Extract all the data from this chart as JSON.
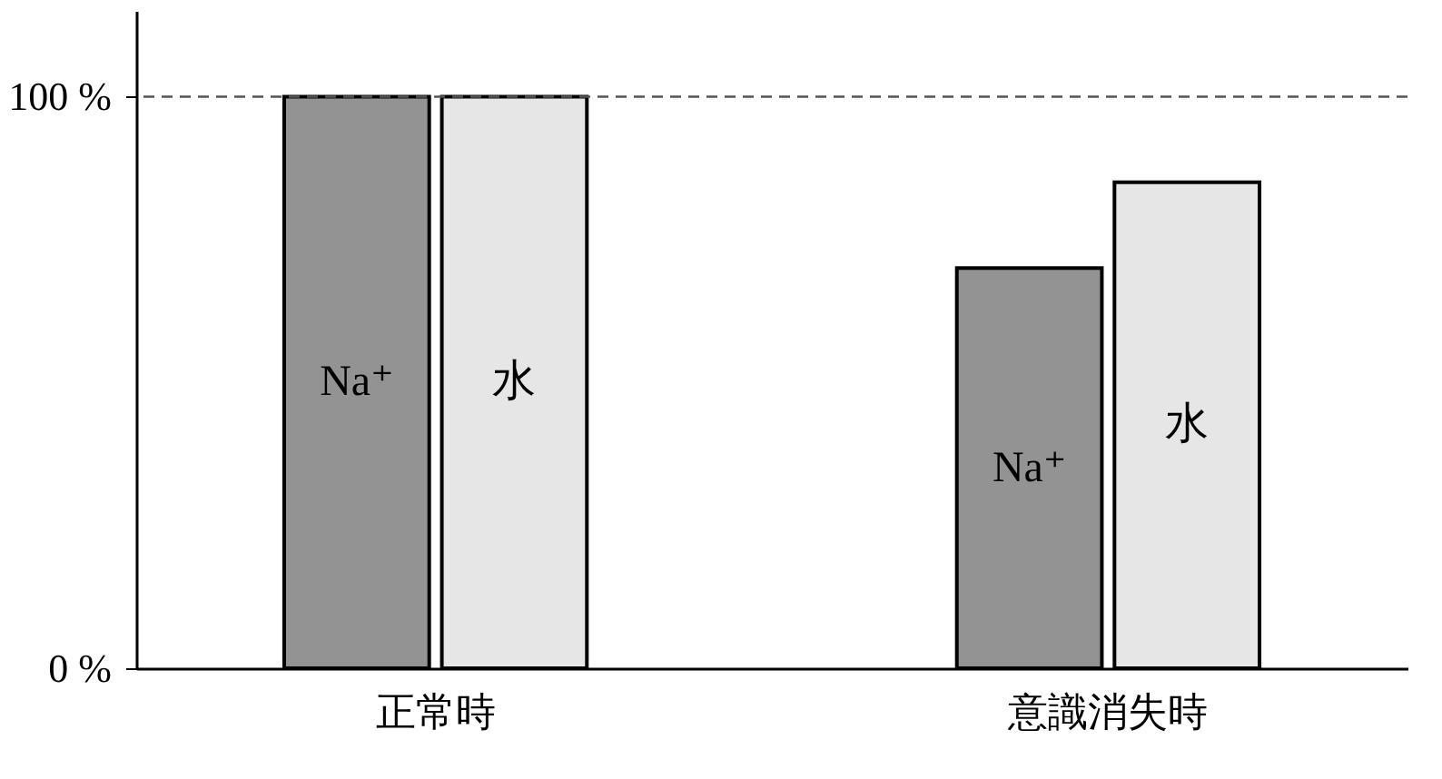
{
  "chart_data": {
    "type": "bar",
    "categories": [
      "正常時",
      "意識消失時"
    ],
    "series": [
      {
        "name": "Na⁺",
        "color": "#939393",
        "values": [
          100,
          70
        ]
      },
      {
        "name": "水",
        "color": "#e6e6e6",
        "values": [
          100,
          85
        ]
      }
    ],
    "ylim": [
      0,
      115
    ],
    "yticks": [
      {
        "value": 0,
        "label": "0 %"
      },
      {
        "value": 100,
        "label": "100 %"
      }
    ],
    "ref_lines": [
      {
        "axis": "y",
        "value": 100,
        "line_style": "dashed",
        "color": "#555555"
      }
    ],
    "legend": false,
    "grid": false
  }
}
